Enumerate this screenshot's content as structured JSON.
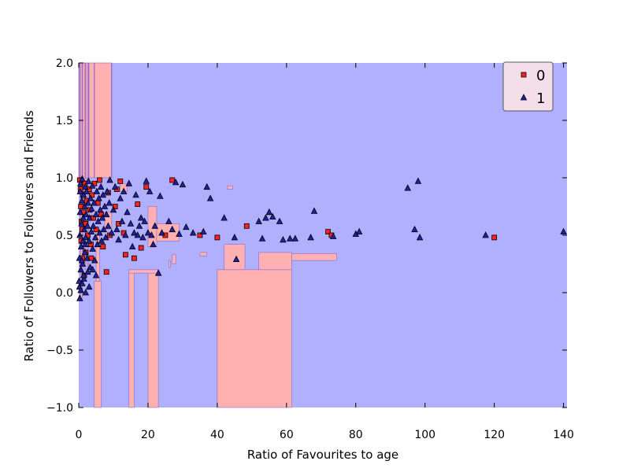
{
  "chart_data": {
    "type": "scatter",
    "title": "",
    "xlabel": "Ratio of Favourites to age",
    "ylabel": "Ratio of Followers to Followers and Friends",
    "xlim": [
      0,
      141
    ],
    "ylim": [
      -1.0,
      2.0
    ],
    "xticks": [
      0,
      20,
      40,
      60,
      80,
      100,
      120,
      140
    ],
    "yticks": [
      -1.0,
      -0.5,
      0.0,
      0.5,
      1.0,
      1.5,
      2.0
    ],
    "xtick_labels": [
      "0",
      "20",
      "40",
      "60",
      "80",
      "100",
      "120",
      "140"
    ],
    "ytick_labels": [
      "−1.0",
      "−0.5",
      "0.0",
      "0.5",
      "1.0",
      "1.5",
      "2.0"
    ],
    "grid": false,
    "legend_position": "top-right",
    "background_regions": {
      "description_classes": [
        "0",
        "1"
      ],
      "colors": {
        "0": "#ffb0b0",
        "1": "#b0b0ff"
      },
      "class0_rects": [
        [
          0,
          9.5,
          1.0,
          2.0
        ],
        [
          0.5,
          1.0,
          -0.05,
          2.0
        ],
        [
          1.6,
          2.0,
          0.2,
          2.0
        ],
        [
          2.6,
          2.9,
          0.2,
          2.0
        ],
        [
          4.5,
          6.5,
          -1.0,
          0.1
        ],
        [
          5.0,
          6.0,
          0.1,
          0.55
        ],
        [
          14.5,
          16.0,
          -1.0,
          0.17
        ],
        [
          20.0,
          23.0,
          -1.0,
          0.17
        ],
        [
          14.5,
          23.0,
          0.17,
          0.2
        ],
        [
          20.0,
          22.5,
          0.4,
          0.75
        ],
        [
          22.5,
          29.0,
          0.45,
          0.6
        ],
        [
          40.0,
          61.5,
          -1.0,
          0.2
        ],
        [
          42.0,
          48.0,
          0.2,
          0.42
        ],
        [
          52.0,
          61.5,
          0.2,
          0.35
        ],
        [
          61.5,
          74.5,
          0.28,
          0.34
        ],
        [
          26.0,
          26.5,
          0.22,
          0.28
        ],
        [
          27.0,
          28.0,
          0.25,
          0.33
        ],
        [
          35.0,
          37.0,
          0.32,
          0.35
        ],
        [
          43.0,
          44.5,
          0.9,
          0.93
        ],
        [
          12.0,
          14.0,
          0.88,
          0.95
        ],
        [
          7.5,
          9.5,
          0.55,
          0.7
        ]
      ]
    },
    "series": [
      {
        "name": "0",
        "marker": "square",
        "color": "#ff2020",
        "points": [
          [
            0.3,
            0.98
          ],
          [
            0.5,
            0.9
          ],
          [
            0.6,
            0.75
          ],
          [
            0.8,
            0.62
          ],
          [
            1.0,
            0.55
          ],
          [
            1.2,
            0.85
          ],
          [
            1.5,
            0.7
          ],
          [
            1.8,
            0.95
          ],
          [
            2.0,
            0.6
          ],
          [
            2.3,
            0.8
          ],
          [
            2.6,
            0.5
          ],
          [
            3.0,
            0.9
          ],
          [
            3.2,
            0.72
          ],
          [
            3.5,
            0.42
          ],
          [
            3.8,
            0.85
          ],
          [
            4.2,
            0.65
          ],
          [
            4.5,
            0.95
          ],
          [
            5.0,
            0.55
          ],
          [
            5.5,
            0.78
          ],
          [
            6.0,
            0.98
          ],
          [
            6.5,
            0.68
          ],
          [
            7.0,
            0.4
          ],
          [
            8.0,
            0.18
          ],
          [
            8.5,
            0.87
          ],
          [
            9.0,
            0.5
          ],
          [
            10.5,
            0.75
          ],
          [
            11.0,
            0.9
          ],
          [
            11.5,
            0.6
          ],
          [
            12.0,
            0.97
          ],
          [
            13.0,
            0.52
          ],
          [
            13.5,
            0.33
          ],
          [
            16.0,
            0.3
          ],
          [
            17.0,
            0.77
          ],
          [
            18.0,
            0.39
          ],
          [
            19.5,
            0.92
          ],
          [
            25.0,
            0.5
          ],
          [
            27.0,
            0.98
          ],
          [
            35.0,
            0.5
          ],
          [
            40.0,
            0.48
          ],
          [
            48.5,
            0.58
          ],
          [
            72.0,
            0.53
          ],
          [
            73.0,
            0.5
          ],
          [
            120.0,
            0.48
          ],
          [
            1.0,
            0.3
          ],
          [
            2.0,
            0.35
          ],
          [
            0.7,
            0.45
          ],
          [
            1.6,
            0.15
          ],
          [
            3.6,
            0.3
          ]
        ]
      },
      {
        "name": "1",
        "marker": "triangle",
        "color": "#2020aa",
        "points": [
          [
            0.1,
            0.1
          ],
          [
            0.2,
            0.3
          ],
          [
            0.3,
            0.5
          ],
          [
            0.4,
            0.7
          ],
          [
            0.5,
            0.95
          ],
          [
            0.2,
            0.05
          ],
          [
            0.6,
            0.2
          ],
          [
            0.7,
            0.4
          ],
          [
            0.8,
            0.6
          ],
          [
            0.9,
            0.8
          ],
          [
            1.0,
            0.99
          ],
          [
            1.1,
            0.25
          ],
          [
            1.2,
            0.45
          ],
          [
            1.3,
            0.65
          ],
          [
            1.4,
            0.85
          ],
          [
            1.5,
            0.12
          ],
          [
            1.6,
            0.55
          ],
          [
            1.7,
            0.75
          ],
          [
            1.8,
            0.35
          ],
          [
            1.9,
            0.92
          ],
          [
            2.0,
            0.48
          ],
          [
            2.1,
            0.68
          ],
          [
            2.2,
            0.88
          ],
          [
            2.4,
            0.3
          ],
          [
            2.5,
            0.58
          ],
          [
            2.7,
            0.78
          ],
          [
            2.8,
            0.97
          ],
          [
            3.0,
            0.45
          ],
          [
            3.1,
            0.65
          ],
          [
            3.3,
            0.22
          ],
          [
            3.4,
            0.82
          ],
          [
            3.6,
            0.53
          ],
          [
            3.7,
            0.73
          ],
          [
            3.9,
            0.93
          ],
          [
            4.0,
            0.38
          ],
          [
            4.2,
            0.58
          ],
          [
            4.4,
            0.78
          ],
          [
            4.6,
            0.28
          ],
          [
            4.8,
            0.48
          ],
          [
            5.0,
            0.68
          ],
          [
            5.2,
            0.88
          ],
          [
            5.4,
            0.42
          ],
          [
            5.6,
            0.62
          ],
          [
            5.8,
            0.82
          ],
          [
            6.0,
            0.52
          ],
          [
            6.2,
            0.72
          ],
          [
            6.4,
            0.92
          ],
          [
            6.6,
            0.45
          ],
          [
            6.8,
            0.65
          ],
          [
            7.0,
            0.85
          ],
          [
            7.2,
            0.55
          ],
          [
            7.5,
            0.75
          ],
          [
            7.8,
            0.48
          ],
          [
            8.0,
            0.68
          ],
          [
            8.2,
            0.88
          ],
          [
            8.5,
            0.58
          ],
          [
            8.8,
            0.78
          ],
          [
            9.0,
            0.98
          ],
          [
            9.5,
            0.52
          ],
          [
            10.0,
            0.72
          ],
          [
            10.5,
            0.92
          ],
          [
            11.0,
            0.55
          ],
          [
            11.5,
            0.46
          ],
          [
            12.0,
            0.82
          ],
          [
            12.5,
            0.62
          ],
          [
            13.0,
            0.88
          ],
          [
            13.5,
            0.5
          ],
          [
            14.0,
            0.7
          ],
          [
            14.5,
            0.95
          ],
          [
            15.0,
            0.6
          ],
          [
            15.5,
            0.4
          ],
          [
            16.0,
            0.52
          ],
          [
            16.5,
            0.85
          ],
          [
            17.0,
            0.5
          ],
          [
            17.5,
            0.58
          ],
          [
            18.0,
            0.65
          ],
          [
            18.5,
            0.48
          ],
          [
            19.0,
            0.62
          ],
          [
            19.5,
            0.97
          ],
          [
            20.0,
            0.52
          ],
          [
            20.5,
            0.88
          ],
          [
            21.0,
            0.5
          ],
          [
            21.5,
            0.42
          ],
          [
            22.0,
            0.58
          ],
          [
            23.0,
            0.17
          ],
          [
            23.5,
            0.84
          ],
          [
            24.0,
            0.52
          ],
          [
            26.0,
            0.62
          ],
          [
            27.0,
            0.55
          ],
          [
            28.0,
            0.96
          ],
          [
            29.0,
            0.51
          ],
          [
            30.0,
            0.94
          ],
          [
            31.0,
            0.57
          ],
          [
            33.0,
            0.52
          ],
          [
            36.0,
            0.53
          ],
          [
            37.0,
            0.92
          ],
          [
            38.0,
            0.82
          ],
          [
            42.0,
            0.65
          ],
          [
            45.0,
            0.48
          ],
          [
            45.5,
            0.29
          ],
          [
            52.0,
            0.62
          ],
          [
            53.0,
            0.47
          ],
          [
            54.0,
            0.65
          ],
          [
            55.0,
            0.7
          ],
          [
            56.0,
            0.66
          ],
          [
            58.0,
            0.62
          ],
          [
            59.0,
            0.46
          ],
          [
            61.0,
            0.47
          ],
          [
            62.5,
            0.47
          ],
          [
            67.0,
            0.48
          ],
          [
            68.0,
            0.71
          ],
          [
            73.5,
            0.49
          ],
          [
            80.0,
            0.51
          ],
          [
            81.0,
            0.53
          ],
          [
            95.0,
            0.91
          ],
          [
            97.0,
            0.55
          ],
          [
            98.0,
            0.97
          ],
          [
            98.5,
            0.48
          ],
          [
            117.5,
            0.5
          ],
          [
            140.0,
            0.53
          ],
          [
            0.3,
            -0.05
          ],
          [
            0.6,
            0.02
          ],
          [
            1.0,
            0.08
          ],
          [
            1.4,
            0.15
          ],
          [
            2.0,
            0.0
          ],
          [
            2.6,
            0.18
          ],
          [
            3.0,
            0.05
          ],
          [
            4.0,
            0.2
          ],
          [
            5.0,
            0.15
          ],
          [
            0.4,
            0.88
          ],
          [
            0.9,
            0.28
          ],
          [
            1.9,
            0.42
          ]
        ]
      }
    ]
  }
}
